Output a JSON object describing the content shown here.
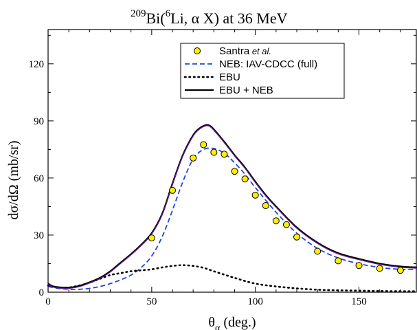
{
  "chart_data": {
    "type": "line",
    "title": {
      "pre": "209",
      "mid": "Bi(",
      "sup": "6",
      "post": "Li, α X) at 36 MeV"
    },
    "xlabel": {
      "main": "θ",
      "sub": "α",
      "rest": " (deg.)"
    },
    "ylabel": "dσ/dΩ (mb/sr)",
    "xlim": [
      0,
      178
    ],
    "ylim": [
      0,
      138
    ],
    "xticks": [
      0,
      50,
      100,
      150
    ],
    "yticks": [
      0,
      30,
      60,
      90,
      120
    ],
    "x_minor_step": 10,
    "y_minor_step": 15,
    "grid": false,
    "legend_position": "top-center",
    "series": [
      {
        "name": "Santra",
        "name_suffix": " et al.",
        "kind": "points",
        "color": "#ffee00",
        "x": [
          50,
          60,
          70,
          75,
          80,
          85,
          90,
          95,
          100,
          105,
          110,
          115,
          120,
          130,
          140,
          150,
          160,
          170
        ],
        "y": [
          28.5,
          53.5,
          70.5,
          77.5,
          73.5,
          72.5,
          63.5,
          59.5,
          51,
          45.5,
          37.5,
          35.5,
          29,
          21.5,
          16.5,
          14,
          12.5,
          11.5
        ],
        "err": [
          1.2,
          1.5,
          1.6,
          1.8,
          1.6,
          1.6,
          1.5,
          1.5,
          1.4,
          1.3,
          1.2,
          1.2,
          1.1,
          1.0,
          0.9,
          0.8,
          0.8,
          0.8
        ]
      },
      {
        "name": "NEB: IAV-CDCC (full)",
        "kind": "dashed",
        "color": "#2244dd",
        "x": [
          0,
          5,
          10,
          15,
          20,
          25,
          30,
          35,
          40,
          45,
          50,
          55,
          60,
          65,
          70,
          75,
          80,
          85,
          90,
          95,
          100,
          110,
          120,
          130,
          140,
          150,
          160,
          170,
          178
        ],
        "y": [
          3,
          2,
          1.5,
          1.5,
          2,
          3,
          4.5,
          6.5,
          9,
          13,
          19,
          29,
          43,
          58,
          70,
          75,
          75.5,
          73,
          68,
          62,
          55,
          42,
          31,
          23,
          18,
          15,
          13,
          12,
          12
        ]
      },
      {
        "name": "EBU",
        "kind": "dotted",
        "color": "#000000",
        "x": [
          0,
          5,
          10,
          15,
          20,
          25,
          30,
          35,
          40,
          45,
          50,
          55,
          60,
          65,
          70,
          75,
          80,
          90,
          100,
          110,
          120,
          130,
          140,
          150,
          160,
          170,
          178
        ],
        "y": [
          3.5,
          2.5,
          2.5,
          3.5,
          5,
          7,
          9,
          10,
          11,
          11.5,
          12,
          13,
          13.8,
          14.2,
          13.8,
          12.8,
          11,
          7.5,
          4.5,
          3,
          2,
          1.3,
          1,
          0.8,
          0.6,
          0.5,
          0.5
        ]
      },
      {
        "name": "EBU + NEB",
        "kind": "solid",
        "color": "#000000",
        "x": [
          0,
          2,
          5,
          10,
          15,
          20,
          25,
          30,
          35,
          40,
          45,
          50,
          55,
          60,
          65,
          70,
          73,
          76,
          78,
          80,
          85,
          90,
          95,
          100,
          105,
          110,
          120,
          130,
          140,
          150,
          160,
          170,
          178
        ],
        "y": [
          4.5,
          3.2,
          2.6,
          2.4,
          3.3,
          5.2,
          7.5,
          11,
          15.5,
          20,
          25,
          31,
          41,
          57,
          72,
          82.5,
          86,
          87.8,
          87.5,
          85.5,
          79,
          72,
          65.5,
          58,
          51,
          45,
          34,
          26,
          20.5,
          17.5,
          15,
          13.5,
          13
        ]
      }
    ]
  }
}
